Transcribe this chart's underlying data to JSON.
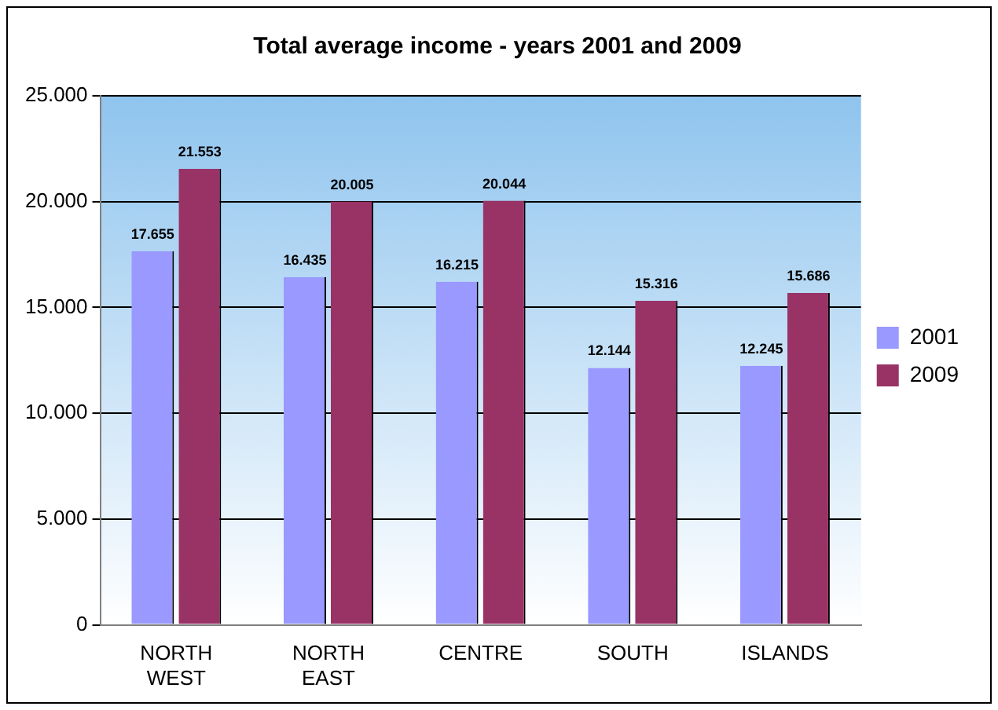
{
  "chart_data": {
    "type": "bar",
    "title": "Total average income - years 2001 and 2009",
    "categories": [
      "NORTH WEST",
      "NORTH EAST",
      "CENTRE",
      "SOUTH",
      "ISLANDS"
    ],
    "series": [
      {
        "name": "2001",
        "color": "#9999ff",
        "values": [
          17655,
          16435,
          16215,
          12144,
          12245
        ],
        "value_labels": [
          "17.655",
          "16.435",
          "16.215",
          "12.144",
          "12.245"
        ]
      },
      {
        "name": "2009",
        "color": "#993366",
        "values": [
          21553,
          20005,
          20044,
          15316,
          15686
        ],
        "value_labels": [
          "21.553",
          "20.005",
          "20.044",
          "15.316",
          "15.686"
        ]
      }
    ],
    "ylim": [
      0,
      25000
    ],
    "yticks": [
      0,
      {
        "value": 5000,
        "label": "5.000"
      },
      {
        "value": 10000,
        "label": "10.000"
      },
      {
        "value": 15000,
        "label": "15.000"
      },
      {
        "value": 20000,
        "label": "20.000"
      },
      {
        "value": 25000,
        "label": "25.000"
      }
    ],
    "grid": "y",
    "legend": "right"
  }
}
